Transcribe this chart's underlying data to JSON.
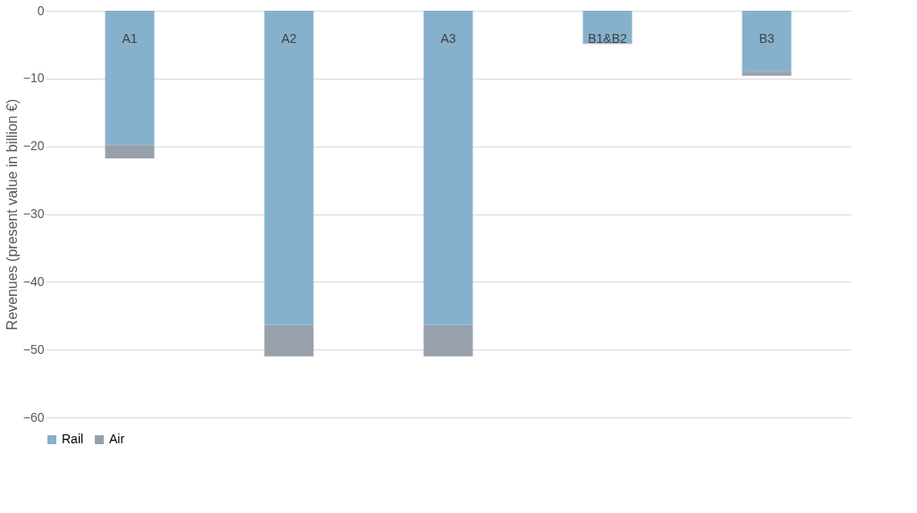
{
  "chart_data": {
    "type": "bar",
    "stacked": true,
    "ylabel": "Revenues (present value in billion €)",
    "categories": [
      "A1",
      "A2",
      "A3",
      "B1&B2",
      "B3"
    ],
    "series": [
      {
        "name": "Rail",
        "color": "#86b1cc",
        "values": [
          -19.8,
          -46.4,
          -46.4,
          -4.8,
          -9.0
        ]
      },
      {
        "name": "Air",
        "color": "#97a0ab",
        "values": [
          -2.0,
          -4.6,
          -4.6,
          -0.1,
          -0.6
        ]
      }
    ],
    "ylim": [
      -60,
      0
    ],
    "yticks": [
      -60,
      -50,
      -40,
      -30,
      -20,
      -10,
      0
    ],
    "grid": "y",
    "legend": "bottom"
  }
}
